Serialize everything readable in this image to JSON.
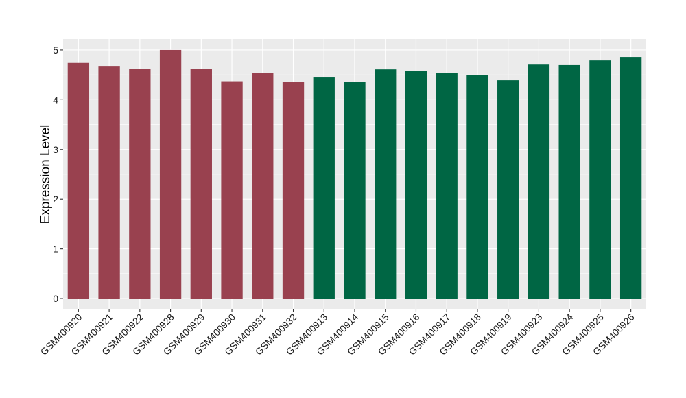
{
  "chart_data": {
    "type": "bar",
    "title": "",
    "xlabel": "",
    "ylabel": "Expression Level",
    "ylim": [
      -0.22,
      5.22
    ],
    "yticks": [
      0,
      1,
      2,
      3,
      4,
      5
    ],
    "grid": true,
    "legend": "none",
    "categories": [
      "GSM400920",
      "GSM400921",
      "GSM400922",
      "GSM400928",
      "GSM400929",
      "GSM400930",
      "GSM400931",
      "GSM400932",
      "GSM400913",
      "GSM400914",
      "GSM400915",
      "GSM400916",
      "GSM400917",
      "GSM400918",
      "GSM400919",
      "GSM400923",
      "GSM400924",
      "GSM400925",
      "GSM400926"
    ],
    "values": [
      4.74,
      4.68,
      4.62,
      5.0,
      4.62,
      4.37,
      4.54,
      4.36,
      4.46,
      4.36,
      4.61,
      4.58,
      4.54,
      4.5,
      4.39,
      4.72,
      4.71,
      4.79,
      4.86
    ],
    "bar_colors": [
      "#99414f",
      "#99414f",
      "#99414f",
      "#99414f",
      "#99414f",
      "#99414f",
      "#99414f",
      "#99414f",
      "#006644",
      "#006644",
      "#006644",
      "#006644",
      "#006644",
      "#006644",
      "#006644",
      "#006644",
      "#006644",
      "#006644",
      "#006644"
    ]
  },
  "colors": {
    "panel_background": "#ebebeb",
    "grid_major": "#ffffff",
    "group_1": "#99414f",
    "group_2": "#006644"
  }
}
